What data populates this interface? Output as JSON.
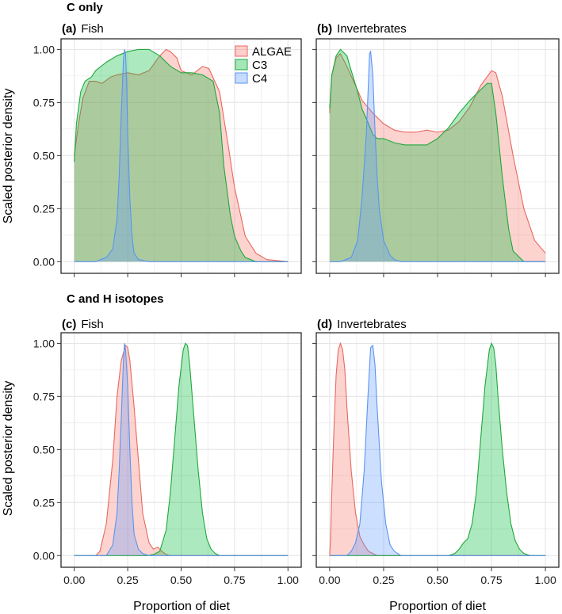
{
  "sections": [
    {
      "title": "C only"
    },
    {
      "title": "C and H isotopes"
    }
  ],
  "legend": [
    {
      "name": "ALGAE",
      "fill": "#F8766D",
      "stroke": "#E8685F"
    },
    {
      "name": "C3",
      "fill": "#00BA38",
      "stroke": "#1FA83C"
    },
    {
      "name": "C4",
      "fill": "#619CFF",
      "stroke": "#5A94F0"
    }
  ],
  "chart_data": [
    {
      "type": "area",
      "panel_tag": "(a)",
      "panel_name": "Fish",
      "xlabel": "",
      "ylabel": "Scaled posterior density",
      "xlim": [
        0,
        1
      ],
      "ylim": [
        0,
        1
      ],
      "xticks": [
        "0.00",
        "0.25",
        "0.50",
        "0.75",
        "1.00"
      ],
      "yticks": [
        "0.00",
        "0.25",
        "0.50",
        "0.75",
        "1.00"
      ],
      "series": [
        {
          "name": "ALGAE",
          "x": [
            0,
            0.02,
            0.04,
            0.07,
            0.1,
            0.13,
            0.17,
            0.2,
            0.25,
            0.3,
            0.35,
            0.4,
            0.43,
            0.45,
            0.48,
            0.5,
            0.55,
            0.6,
            0.63,
            0.68,
            0.72,
            0.75,
            0.8,
            0.85,
            0.9,
            1
          ],
          "y": [
            0.5,
            0.65,
            0.77,
            0.85,
            0.85,
            0.84,
            0.87,
            0.88,
            0.89,
            0.88,
            0.9,
            0.97,
            1.0,
            0.99,
            0.96,
            0.9,
            0.88,
            0.92,
            0.91,
            0.8,
            0.55,
            0.35,
            0.12,
            0.04,
            0.01,
            0
          ]
        },
        {
          "name": "C3",
          "x": [
            0,
            0.01,
            0.03,
            0.05,
            0.08,
            0.1,
            0.15,
            0.2,
            0.25,
            0.3,
            0.35,
            0.4,
            0.45,
            0.5,
            0.55,
            0.6,
            0.65,
            0.68,
            0.7,
            0.73,
            0.75,
            0.78,
            0.8,
            0.85,
            1
          ],
          "y": [
            0.47,
            0.65,
            0.8,
            0.85,
            0.87,
            0.9,
            0.94,
            0.97,
            0.99,
            1.0,
            1.0,
            0.97,
            0.92,
            0.89,
            0.89,
            0.88,
            0.85,
            0.7,
            0.45,
            0.22,
            0.12,
            0.05,
            0.02,
            0,
            0
          ]
        },
        {
          "name": "C4",
          "x": [
            0,
            0.1,
            0.15,
            0.18,
            0.2,
            0.21,
            0.22,
            0.23,
            0.235,
            0.24,
            0.245,
            0.25,
            0.26,
            0.27,
            0.28,
            0.3,
            0.35,
            1
          ],
          "y": [
            0,
            0,
            0.02,
            0.06,
            0.2,
            0.4,
            0.7,
            0.95,
            1.0,
            0.98,
            0.85,
            0.6,
            0.3,
            0.12,
            0.04,
            0.01,
            0,
            0
          ]
        }
      ]
    },
    {
      "type": "area",
      "panel_tag": "(b)",
      "panel_name": "Invertebrates",
      "xlabel": "",
      "ylabel": "",
      "xlim": [
        0,
        1
      ],
      "ylim": [
        0,
        1
      ],
      "xticks": [
        "0.00",
        "0.25",
        "0.50",
        "0.75",
        "1.00"
      ],
      "yticks": [
        "0.00",
        "0.25",
        "0.50",
        "0.75",
        "1.00"
      ],
      "series": [
        {
          "name": "ALGAE",
          "x": [
            0,
            0.01,
            0.03,
            0.05,
            0.08,
            0.12,
            0.15,
            0.2,
            0.25,
            0.3,
            0.35,
            0.4,
            0.45,
            0.5,
            0.55,
            0.6,
            0.65,
            0.7,
            0.75,
            0.77,
            0.8,
            0.85,
            0.9,
            0.95,
            1
          ],
          "y": [
            0.7,
            0.88,
            0.96,
            0.98,
            0.92,
            0.83,
            0.76,
            0.7,
            0.65,
            0.62,
            0.61,
            0.61,
            0.62,
            0.61,
            0.62,
            0.66,
            0.73,
            0.83,
            0.9,
            0.89,
            0.78,
            0.5,
            0.25,
            0.1,
            0.04
          ]
        },
        {
          "name": "C3",
          "x": [
            0,
            0.01,
            0.03,
            0.05,
            0.08,
            0.1,
            0.13,
            0.15,
            0.18,
            0.2,
            0.22,
            0.25,
            0.3,
            0.35,
            0.4,
            0.45,
            0.5,
            0.55,
            0.6,
            0.65,
            0.7,
            0.73,
            0.75,
            0.77,
            0.8,
            0.83,
            0.85,
            0.88,
            0.9,
            0.95,
            1
          ],
          "y": [
            0.72,
            0.88,
            0.97,
            1.0,
            0.97,
            0.9,
            0.8,
            0.72,
            0.65,
            0.6,
            0.58,
            0.58,
            0.56,
            0.55,
            0.55,
            0.55,
            0.58,
            0.63,
            0.7,
            0.76,
            0.81,
            0.84,
            0.84,
            0.7,
            0.4,
            0.15,
            0.05,
            0.02,
            0,
            0,
            0
          ]
        },
        {
          "name": "C4",
          "x": [
            0,
            0.05,
            0.1,
            0.13,
            0.15,
            0.17,
            0.18,
            0.185,
            0.19,
            0.2,
            0.21,
            0.22,
            0.23,
            0.25,
            0.28,
            0.3,
            0.33,
            1
          ],
          "y": [
            0,
            0,
            0.02,
            0.1,
            0.3,
            0.6,
            0.85,
            0.98,
            0.99,
            0.88,
            0.62,
            0.4,
            0.25,
            0.1,
            0.03,
            0.01,
            0,
            0
          ]
        }
      ]
    },
    {
      "type": "area",
      "panel_tag": "(c)",
      "panel_name": "Fish",
      "xlabel": "Proportion of diet",
      "ylabel": "Scaled posterior density",
      "xlim": [
        0,
        1
      ],
      "ylim": [
        0,
        1
      ],
      "xticks": [
        "0.00",
        "0.25",
        "0.50",
        "0.75",
        "1.00"
      ],
      "yticks": [
        "0.00",
        "0.25",
        "0.50",
        "0.75",
        "1.00"
      ],
      "series": [
        {
          "name": "ALGAE",
          "x": [
            0,
            0.1,
            0.12,
            0.15,
            0.18,
            0.2,
            0.22,
            0.24,
            0.25,
            0.26,
            0.28,
            0.3,
            0.32,
            0.35,
            0.37,
            0.39,
            0.41,
            0.43,
            0.45,
            1
          ],
          "y": [
            0,
            0,
            0.02,
            0.15,
            0.45,
            0.75,
            0.92,
            0.99,
            0.98,
            0.92,
            0.7,
            0.45,
            0.2,
            0.06,
            0.03,
            0.04,
            0.02,
            0.005,
            0,
            0
          ]
        },
        {
          "name": "C3",
          "x": [
            0,
            0.34,
            0.37,
            0.4,
            0.43,
            0.45,
            0.47,
            0.49,
            0.51,
            0.52,
            0.53,
            0.54,
            0.56,
            0.58,
            0.6,
            0.62,
            0.64,
            0.66,
            0.68,
            1
          ],
          "y": [
            0,
            0,
            0.005,
            0.02,
            0.12,
            0.3,
            0.55,
            0.8,
            0.97,
            1.0,
            0.99,
            0.9,
            0.65,
            0.4,
            0.2,
            0.08,
            0.03,
            0.01,
            0,
            0
          ]
        },
        {
          "name": "C4",
          "x": [
            0,
            0.15,
            0.18,
            0.2,
            0.21,
            0.22,
            0.23,
            0.235,
            0.24,
            0.25,
            0.26,
            0.27,
            0.28,
            0.3,
            0.32,
            0.35,
            1
          ],
          "y": [
            0,
            0,
            0.05,
            0.2,
            0.4,
            0.65,
            0.92,
            1.0,
            0.97,
            0.8,
            0.5,
            0.25,
            0.1,
            0.03,
            0.01,
            0,
            0
          ]
        }
      ]
    },
    {
      "type": "area",
      "panel_tag": "(d)",
      "panel_name": "Invertebrates",
      "xlabel": "Proportion of diet",
      "ylabel": "",
      "xlim": [
        0,
        1
      ],
      "ylim": [
        0,
        1
      ],
      "xticks": [
        "0.00",
        "0.25",
        "0.50",
        "0.75",
        "1.00"
      ],
      "yticks": [
        "0.00",
        "0.25",
        "0.50",
        "0.75",
        "1.00"
      ],
      "series": [
        {
          "name": "ALGAE",
          "x": [
            0,
            0.005,
            0.01,
            0.02,
            0.03,
            0.04,
            0.05,
            0.06,
            0.07,
            0.08,
            0.1,
            0.12,
            0.14,
            0.16,
            0.18,
            0.2,
            0.22,
            0.25,
            1
          ],
          "y": [
            0,
            0.1,
            0.3,
            0.6,
            0.85,
            0.97,
            1.0,
            0.97,
            0.88,
            0.7,
            0.4,
            0.2,
            0.09,
            0.05,
            0.02,
            0.01,
            0,
            0,
            0
          ]
        },
        {
          "name": "C3",
          "x": [
            0,
            0.55,
            0.58,
            0.6,
            0.62,
            0.64,
            0.66,
            0.68,
            0.7,
            0.72,
            0.74,
            0.75,
            0.76,
            0.77,
            0.78,
            0.8,
            0.82,
            0.84,
            0.86,
            0.88,
            0.9,
            0.93,
            1
          ],
          "y": [
            0,
            0,
            0.01,
            0.03,
            0.06,
            0.08,
            0.15,
            0.3,
            0.55,
            0.8,
            0.97,
            1.0,
            0.98,
            0.9,
            0.75,
            0.5,
            0.3,
            0.15,
            0.07,
            0.03,
            0.01,
            0,
            0
          ]
        },
        {
          "name": "C4",
          "x": [
            0,
            0.08,
            0.1,
            0.12,
            0.14,
            0.16,
            0.18,
            0.19,
            0.2,
            0.21,
            0.22,
            0.24,
            0.26,
            0.28,
            0.3,
            0.33,
            1
          ],
          "y": [
            0,
            0,
            0.02,
            0.06,
            0.15,
            0.4,
            0.8,
            0.98,
            0.99,
            0.9,
            0.7,
            0.35,
            0.15,
            0.05,
            0.02,
            0,
            0
          ]
        }
      ]
    }
  ]
}
